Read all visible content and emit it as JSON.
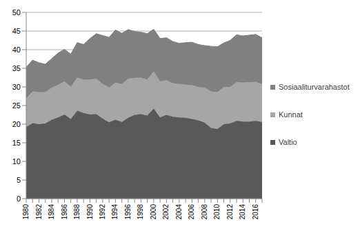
{
  "chart_data": {
    "type": "area",
    "stacked": true,
    "grid": true,
    "legend": "right",
    "categories": [
      "1980",
      null,
      "1982",
      null,
      "1984",
      null,
      "1986",
      null,
      "1988",
      null,
      "1990",
      null,
      "1992",
      null,
      "1994",
      null,
      "1996",
      null,
      "1998",
      null,
      "2000",
      null,
      "2002",
      null,
      "2004",
      null,
      "2006",
      null,
      "2008",
      null,
      "2010",
      null,
      "2012",
      null,
      "2014",
      null,
      "2016",
      null
    ],
    "ylim": [
      0,
      50
    ],
    "yticks": [
      0,
      5,
      10,
      15,
      20,
      25,
      30,
      35,
      40,
      45,
      50
    ],
    "series": [
      {
        "name": "Valtio",
        "color": "#595959",
        "values": [
          19.2,
          20.3,
          20.0,
          20.2,
          21.2,
          21.8,
          22.6,
          21.4,
          23.6,
          23.0,
          22.6,
          22.7,
          21.5,
          20.5,
          21.2,
          20.6,
          21.7,
          22.5,
          22.7,
          22.3,
          24.2,
          21.8,
          22.5,
          22.0,
          21.8,
          21.7,
          21.4,
          21.0,
          20.4,
          19.0,
          18.7,
          20.0,
          20.2,
          20.9,
          20.7,
          20.7,
          20.9,
          20.6
        ]
      },
      {
        "name": "Kunnat",
        "color": "#a6a6a6",
        "values": [
          7.8,
          8.5,
          8.6,
          8.4,
          8.6,
          8.8,
          8.9,
          8.6,
          8.9,
          9.0,
          9.4,
          9.5,
          9.3,
          9.3,
          10.0,
          10.2,
          10.5,
          9.9,
          9.8,
          9.7,
          10.0,
          9.7,
          9.3,
          9.0,
          9.0,
          8.9,
          9.1,
          9.0,
          9.4,
          9.8,
          9.9,
          10.0,
          9.8,
          10.4,
          10.5,
          10.6,
          10.5,
          10.2
        ]
      },
      {
        "name": "Sosiaaliturvarahastot",
        "color": "#808080",
        "values": [
          8.3,
          8.4,
          7.9,
          7.5,
          7.8,
          8.5,
          8.6,
          8.8,
          9.4,
          9.4,
          11.0,
          12.1,
          13.0,
          13.5,
          14.1,
          13.6,
          13.2,
          12.5,
          12.2,
          12.3,
          11.3,
          11.5,
          11.4,
          11.2,
          10.9,
          11.3,
          11.5,
          11.4,
          11.3,
          12.1,
          12.2,
          11.8,
          12.5,
          12.7,
          12.5,
          12.6,
          12.7,
          12.4
        ]
      }
    ]
  }
}
